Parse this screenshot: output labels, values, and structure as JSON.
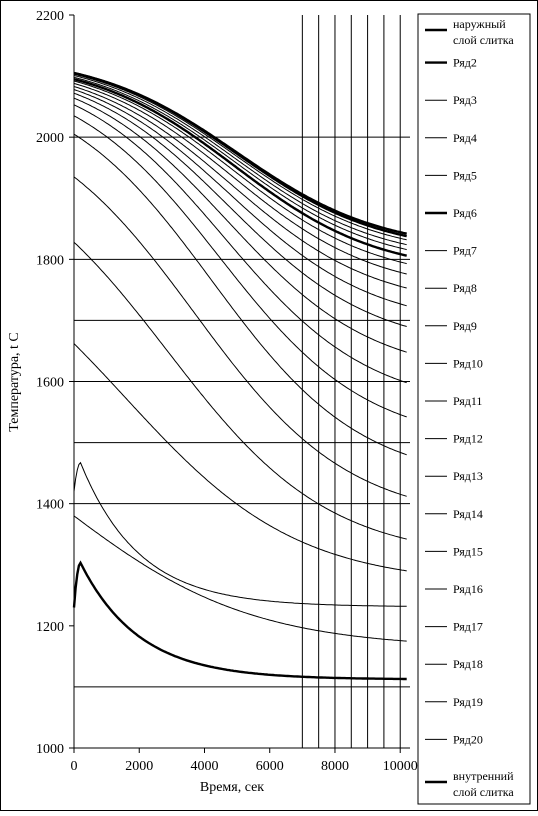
{
  "chart_data": {
    "type": "line",
    "title": "",
    "xlabel": "Время, сек",
    "ylabel": "Температура, t С",
    "xlim": [
      0,
      10300
    ],
    "ylim": [
      1000,
      2200
    ],
    "x_ticks": [
      "0",
      "2000",
      "4000",
      "6000",
      "8000",
      "10000"
    ],
    "y_ticks": [
      "1000",
      "1200",
      "1400",
      "1600",
      "1800",
      "2000",
      "2200"
    ],
    "grid": {
      "horizontal": [
        1100,
        1400,
        1500,
        1600,
        1700,
        1800,
        2000
      ],
      "vertical": [
        7000,
        7500,
        8000,
        8500,
        9000,
        9500,
        10000
      ]
    },
    "legend_position": "right",
    "series": [
      {
        "name": "наружный слой слитка",
        "start": 2105,
        "end": 1842,
        "heavy": true
      },
      {
        "name": "Ряд2",
        "start": 2105,
        "end": 1838,
        "heavy": true
      },
      {
        "name": "Ряд3",
        "start": 2103,
        "end": 1832,
        "heavy": false
      },
      {
        "name": "Ряд4",
        "start": 2101,
        "end": 1824,
        "heavy": false
      },
      {
        "name": "Ряд5",
        "start": 2098,
        "end": 1816,
        "heavy": false
      },
      {
        "name": "Ряд6",
        "start": 2095,
        "end": 1806,
        "heavy": true
      },
      {
        "name": "Ряд7",
        "start": 2092,
        "end": 1793,
        "heavy": false
      },
      {
        "name": "Ряд8",
        "start": 2088,
        "end": 1776,
        "heavy": false
      },
      {
        "name": "Ряд9",
        "start": 2083,
        "end": 1753,
        "heavy": false
      },
      {
        "name": "Ряд10",
        "start": 2078,
        "end": 1724,
        "heavy": false
      },
      {
        "name": "Ряд11",
        "start": 2072,
        "end": 1690,
        "heavy": false
      },
      {
        "name": "Ряд12",
        "start": 2064,
        "end": 1648,
        "heavy": false
      },
      {
        "name": "Ряд13",
        "start": 2053,
        "end": 1598,
        "heavy": false
      },
      {
        "name": "Ряд14",
        "start": 2035,
        "end": 1542,
        "heavy": false
      },
      {
        "name": "Ряд15",
        "start": 2005,
        "end": 1480,
        "heavy": false
      },
      {
        "name": "Ряд16",
        "start": 1935,
        "end": 1412,
        "heavy": false
      },
      {
        "name": "Ряд17",
        "start": 1828,
        "end": 1342,
        "heavy": false
      },
      {
        "name": "Ряд18",
        "start": 1662,
        "end": 1290,
        "heavy": false
      },
      {
        "name": "Ряд19",
        "start": 1420,
        "end": 1232,
        "peak": {
          "x": 200,
          "y": 1467
        },
        "heavy": false
      },
      {
        "name": "Ряд20",
        "start": 1380,
        "end": 1175,
        "heavy": false
      },
      {
        "name": "внутренний слой слитка",
        "start": 1230,
        "end": 1113,
        "peak": {
          "x": 200,
          "y": 1303
        },
        "heavy": true
      }
    ]
  }
}
